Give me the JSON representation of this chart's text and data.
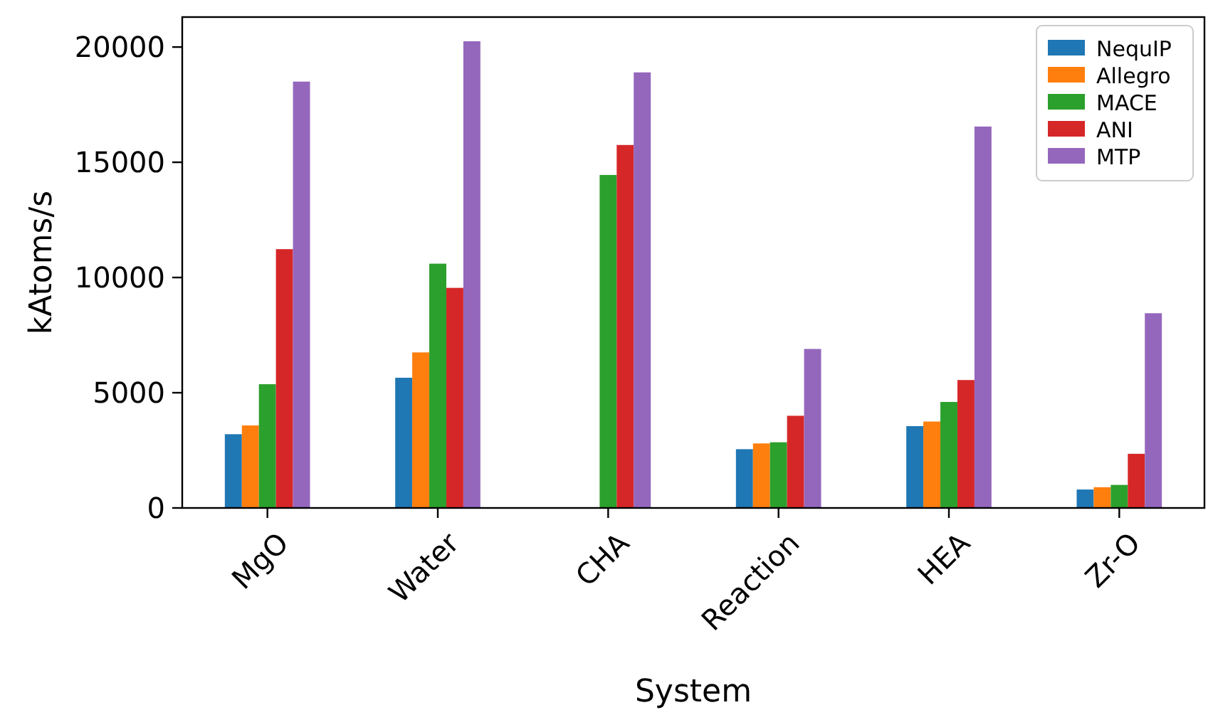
{
  "chart_data": {
    "type": "bar",
    "xlabel": "System",
    "ylabel": "kAtoms/s",
    "categories": [
      "MgO",
      "Water",
      "CHA",
      "Reaction",
      "HEA",
      "Zr-O"
    ],
    "series": [
      {
        "name": "NequIP",
        "color": "#1f77b4",
        "values": [
          3200,
          5650,
          null,
          2550,
          3550,
          800
        ]
      },
      {
        "name": "Allegro",
        "color": "#ff7f0e",
        "values": [
          3580,
          6750,
          null,
          2800,
          3750,
          900
        ]
      },
      {
        "name": "MACE",
        "color": "#2ca02c",
        "values": [
          5370,
          10600,
          14450,
          2850,
          4600,
          1000
        ]
      },
      {
        "name": "ANI",
        "color": "#d62728",
        "values": [
          11230,
          9550,
          15750,
          4000,
          5550,
          2350
        ]
      },
      {
        "name": "MTP",
        "color": "#9467bd",
        "values": [
          18500,
          20250,
          18900,
          6900,
          16550,
          8450
        ]
      }
    ],
    "ylim": [
      0,
      21300
    ],
    "yticks": [
      0,
      5000,
      10000,
      15000,
      20000
    ],
    "legend": "top right"
  }
}
